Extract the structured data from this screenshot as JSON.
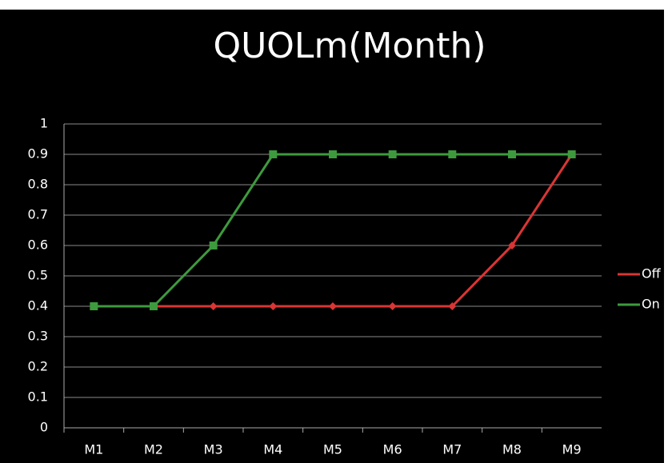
{
  "chart_data": {
    "type": "line",
    "title": "QUOLm(Month)",
    "categories": [
      "M1",
      "M2",
      "M3",
      "M4",
      "M5",
      "M6",
      "M7",
      "M8",
      "M9"
    ],
    "series": [
      {
        "name": "Off",
        "color": "#d93535",
        "values": [
          0.4,
          0.4,
          0.4,
          0.4,
          0.4,
          0.4,
          0.4,
          0.6,
          0.9
        ]
      },
      {
        "name": "On",
        "color": "#3d9a3d",
        "values": [
          0.4,
          0.4,
          0.6,
          0.9,
          0.9,
          0.9,
          0.9,
          0.9,
          0.9
        ]
      }
    ],
    "ylim": [
      0,
      1
    ],
    "yticks": [
      0,
      0.1,
      0.2,
      0.3,
      0.4,
      0.5,
      0.6,
      0.7,
      0.8,
      0.9,
      1
    ],
    "grid": true,
    "legend": "right"
  }
}
